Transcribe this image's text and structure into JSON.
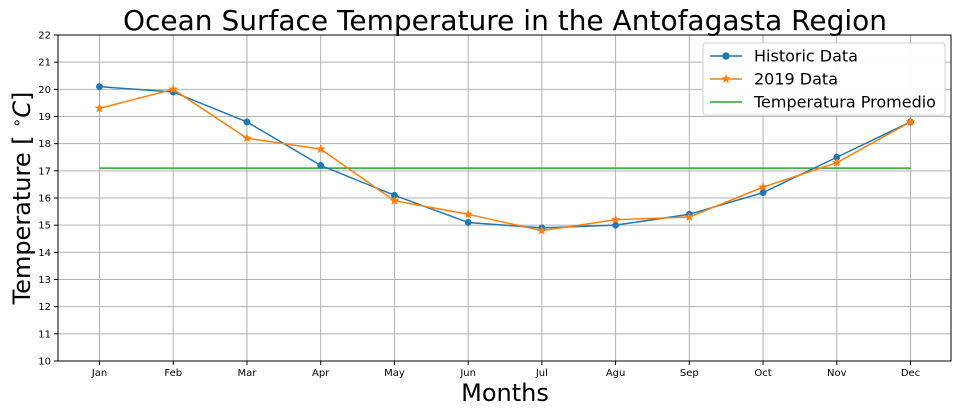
{
  "chart_data": {
    "type": "line",
    "title": "Ocean Surface Temperature in the Antofagasta Region",
    "xlabel": "Months",
    "ylabel": "Temperature [ $^\\circ C$]",
    "categories": [
      "Jan",
      "Feb",
      "Mar",
      "Apr",
      "May",
      "Jun",
      "Jul",
      "Agu",
      "Sep",
      "Oct",
      "Nov",
      "Dec"
    ],
    "ylim": [
      10,
      22
    ],
    "yticks": [
      10,
      11,
      12,
      13,
      14,
      15,
      16,
      17,
      18,
      19,
      20,
      21,
      22
    ],
    "grid": true,
    "legend_position": "top-right",
    "series": [
      {
        "name": "Historic Data",
        "color": "#1f77b4",
        "marker": "circle",
        "values": [
          20.1,
          19.9,
          18.8,
          17.2,
          16.1,
          15.1,
          14.9,
          15.0,
          15.4,
          16.2,
          17.5,
          18.8
        ]
      },
      {
        "name": "2019 Data",
        "color": "#ff7f0e",
        "marker": "star",
        "values": [
          19.3,
          20.0,
          18.2,
          17.8,
          15.9,
          15.4,
          14.8,
          15.2,
          15.3,
          16.4,
          17.3,
          18.8
        ]
      },
      {
        "name": "Temperatura Promedio",
        "color": "#2ca02c",
        "marker": "none",
        "values": [
          17.1,
          17.1,
          17.1,
          17.1,
          17.1,
          17.1,
          17.1,
          17.1,
          17.1,
          17.1,
          17.1,
          17.1
        ]
      }
    ]
  }
}
